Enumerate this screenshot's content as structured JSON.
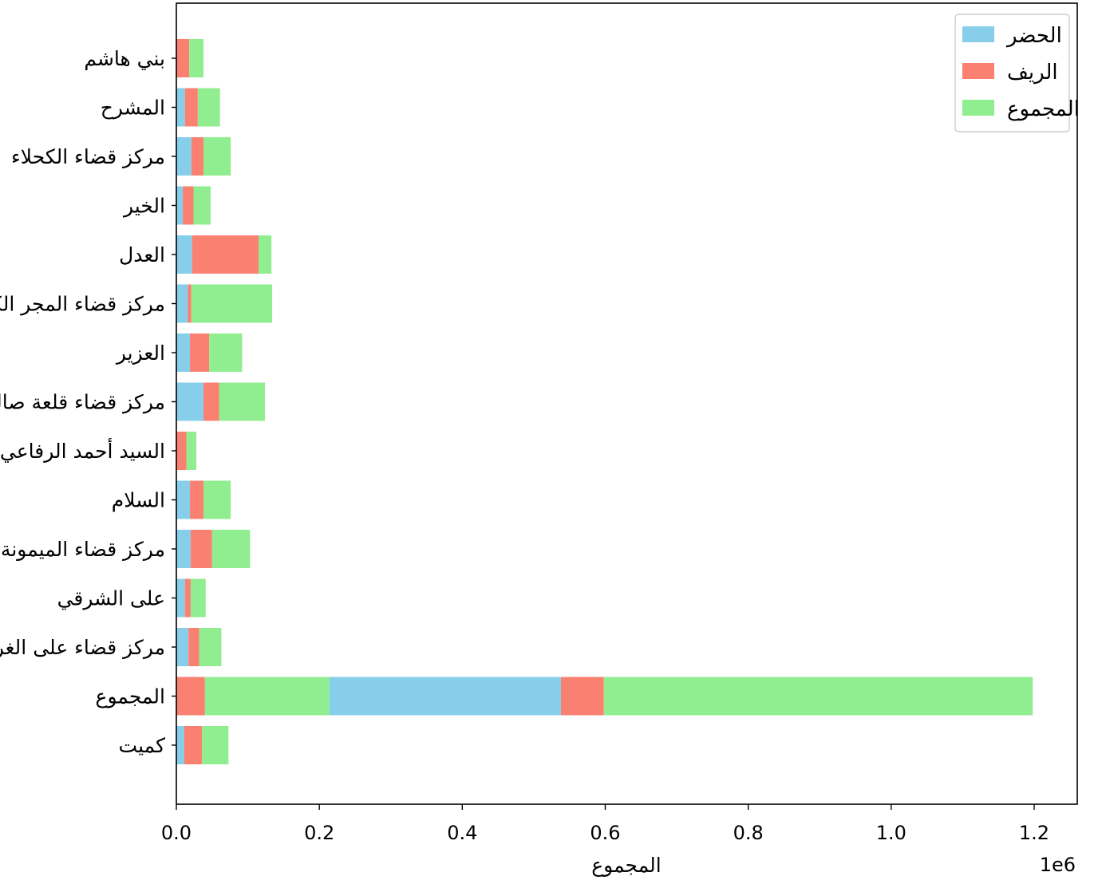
{
  "chart_data": {
    "type": "bar",
    "orientation": "horizontal",
    "stacked": true,
    "categories": [
      "بني هاشم",
      "المشرح",
      "مركز قضاء الكحلاء",
      "الخير",
      "العدل",
      "مركز قضاء المجر الكبير",
      "العزير",
      "مركز قضاء قلعة صالح",
      "السيد أحمد الرفاعي",
      "السلام",
      "مركز قضاء الميمونة",
      "على الشرقي",
      "مركز قضاء على الغربي",
      "المجموع",
      "كميت"
    ],
    "series": [
      {
        "name": "الحضر",
        "color": "#87ceeb",
        "values": [
          0,
          12000,
          21000,
          9000,
          22000,
          16000,
          19000,
          38000,
          0,
          19000,
          20000,
          12000,
          17000,
          0,
          11000
        ]
      },
      {
        "name": "الريف",
        "color": "#fa8072",
        "values": [
          18000,
          18000,
          17000,
          15000,
          93000,
          5000,
          27000,
          22000,
          14000,
          19000,
          30000,
          8000,
          15000,
          40000,
          25000
        ]
      },
      {
        "name": "المجموع",
        "color": "#90ee90",
        "values": [
          20000,
          31000,
          38000,
          24000,
          18000,
          113000,
          46000,
          64000,
          14000,
          38000,
          53000,
          21000,
          31000,
          174000,
          37000
        ]
      }
    ],
    "extra_segments": [
      {
        "category": "المجموع",
        "series": "الحضر",
        "start": 214000,
        "value": 324000
      },
      {
        "category": "المجموع",
        "series": "الريف",
        "start": 538000,
        "value": 60000
      },
      {
        "category": "المجموع",
        "series": "المجموع",
        "start": 598000,
        "value": 600000
      }
    ],
    "xlabel": "المجموع",
    "ylabel": "",
    "xlim": [
      0,
      1260000
    ],
    "xticks": [
      0,
      0.2,
      0.4,
      0.6,
      0.8,
      1.0,
      1.2
    ],
    "xtick_labels": [
      "0.0",
      "0.2",
      "0.4",
      "0.6",
      "0.8",
      "1.0",
      "1.2"
    ],
    "xscale_note": "1e6",
    "grid": false,
    "legend_position": "top-right"
  }
}
